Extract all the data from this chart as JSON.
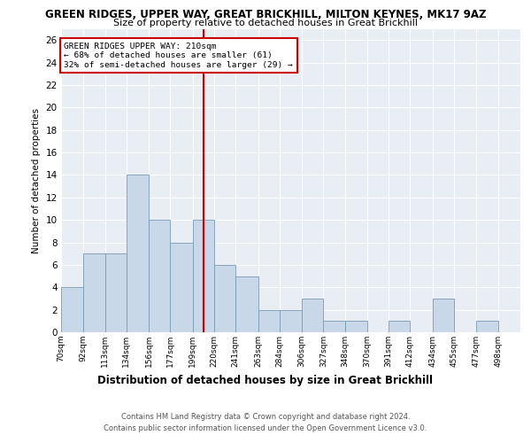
{
  "title1": "GREEN RIDGES, UPPER WAY, GREAT BRICKHILL, MILTON KEYNES, MK17 9AZ",
  "title2": "Size of property relative to detached houses in Great Brickhill",
  "xlabel": "Distribution of detached houses by size in Great Brickhill",
  "ylabel": "Number of detached properties",
  "footnote": "Contains HM Land Registry data © Crown copyright and database right 2024.\nContains public sector information licensed under the Open Government Licence v3.0.",
  "bin_labels": [
    "70sqm",
    "92sqm",
    "113sqm",
    "134sqm",
    "156sqm",
    "177sqm",
    "199sqm",
    "220sqm",
    "241sqm",
    "263sqm",
    "284sqm",
    "306sqm",
    "327sqm",
    "348sqm",
    "370sqm",
    "391sqm",
    "412sqm",
    "434sqm",
    "455sqm",
    "477sqm",
    "498sqm"
  ],
  "counts": [
    4,
    7,
    7,
    14,
    10,
    8,
    10,
    6,
    5,
    2,
    2,
    3,
    1,
    1,
    0,
    1,
    0,
    3,
    0,
    1,
    0
  ],
  "bar_color": "#c8d8e8",
  "bar_edge_color": "#7a9ab5",
  "ref_line_x": 210,
  "bin_edges": [
    70,
    92,
    113,
    134,
    156,
    177,
    199,
    220,
    241,
    263,
    284,
    306,
    327,
    348,
    370,
    391,
    412,
    434,
    455,
    477,
    498,
    520
  ],
  "annotation_line1": "GREEN RIDGES UPPER WAY: 210sqm",
  "annotation_line2": "← 68% of detached houses are smaller (61)",
  "annotation_line3": "32% of semi-detached houses are larger (29) →",
  "annotation_box_color": "#ffffff",
  "annotation_box_edge": "#cc0000",
  "ref_line_color": "#cc0000",
  "ylim": [
    0,
    27
  ],
  "yticks": [
    0,
    2,
    4,
    6,
    8,
    10,
    12,
    14,
    16,
    18,
    20,
    22,
    24,
    26
  ],
  "background_color": "#e8eef4",
  "grid_color": "#ffffff"
}
